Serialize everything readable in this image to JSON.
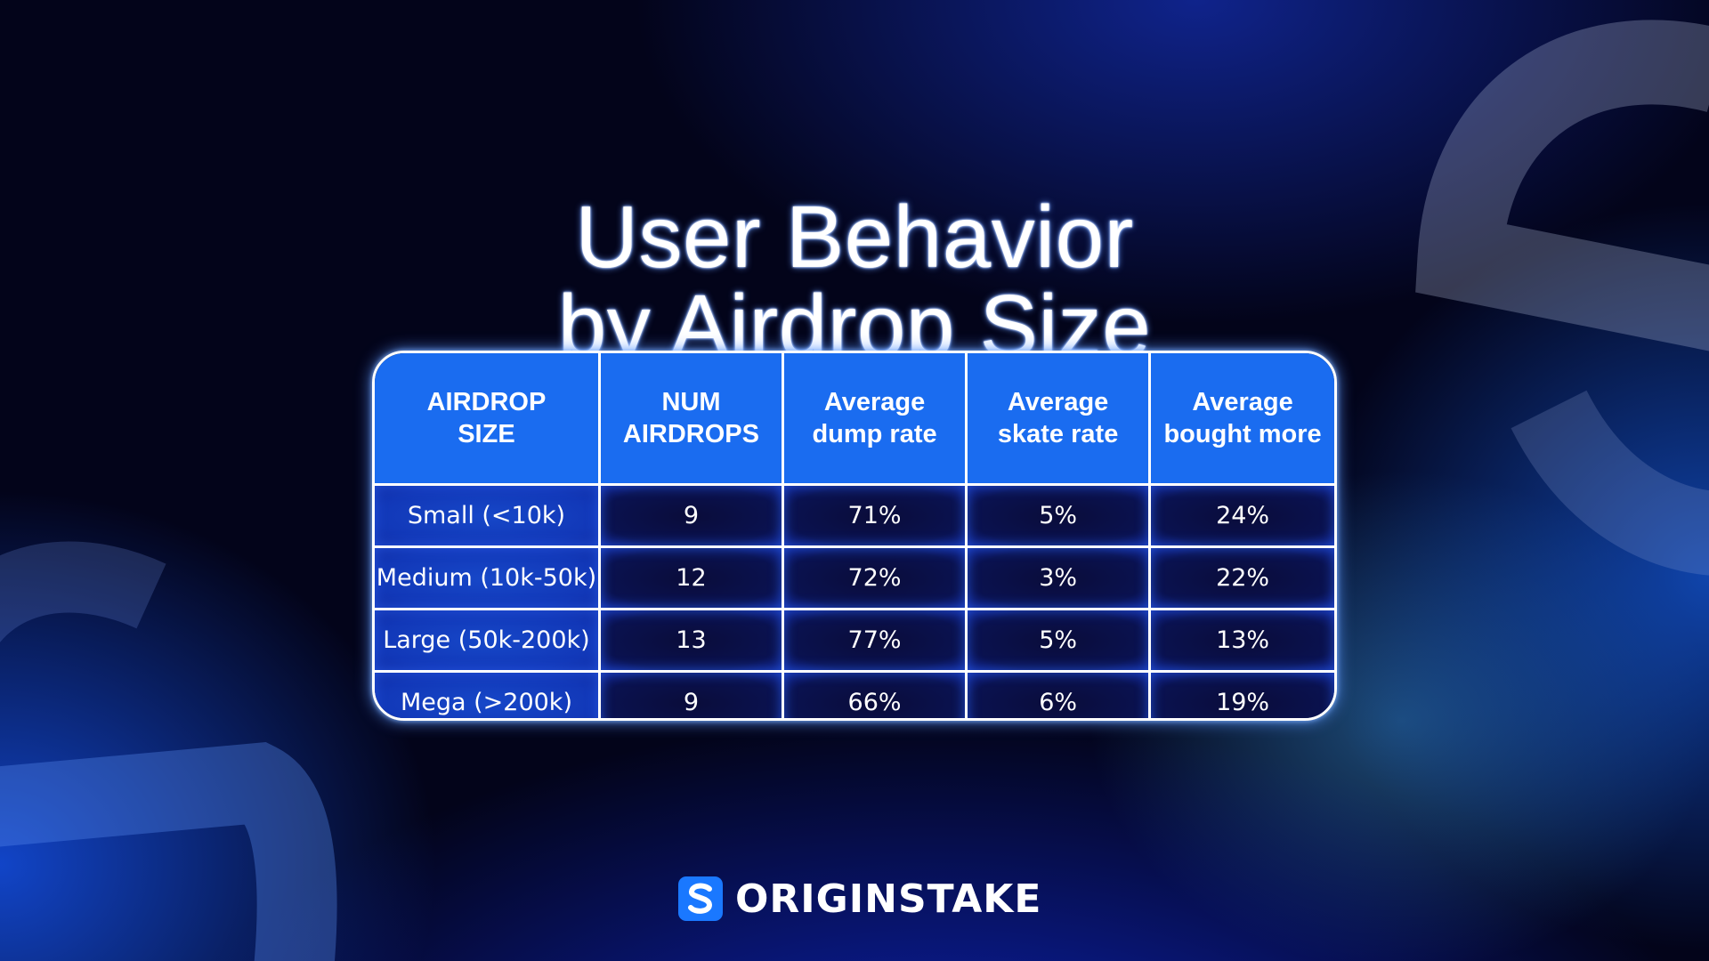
{
  "title": {
    "line1": "User Behavior",
    "line2": "by Airdrop Size"
  },
  "brand": {
    "name": "ORIGINSTAKE",
    "logo_icon": "s-logo-icon",
    "logo_color": "#1a78ff"
  },
  "colors": {
    "header_bg": "#1a6cf0",
    "first_col_bg": "#1238b8",
    "cell_bg": "#0a0c3a",
    "border": "#ffffff"
  },
  "chart_data": {
    "type": "table",
    "title": "User Behavior by Airdrop Size",
    "columns": [
      [
        "AIRDROP",
        "SIZE"
      ],
      [
        "NUM",
        "AIRDROPS"
      ],
      [
        "Average",
        "dump rate"
      ],
      [
        "Average",
        "skate rate"
      ],
      [
        "Average",
        "bought more"
      ]
    ],
    "rows": [
      [
        "Small (<10k)",
        "9",
        "71%",
        "5%",
        "24%"
      ],
      [
        "Medium (10k-50k)",
        "12",
        "72%",
        "3%",
        "22%"
      ],
      [
        "Large (50k-200k)",
        "13",
        "77%",
        "5%",
        "13%"
      ],
      [
        "Mega (>200k)",
        "9",
        "66%",
        "6%",
        "19%"
      ]
    ]
  }
}
